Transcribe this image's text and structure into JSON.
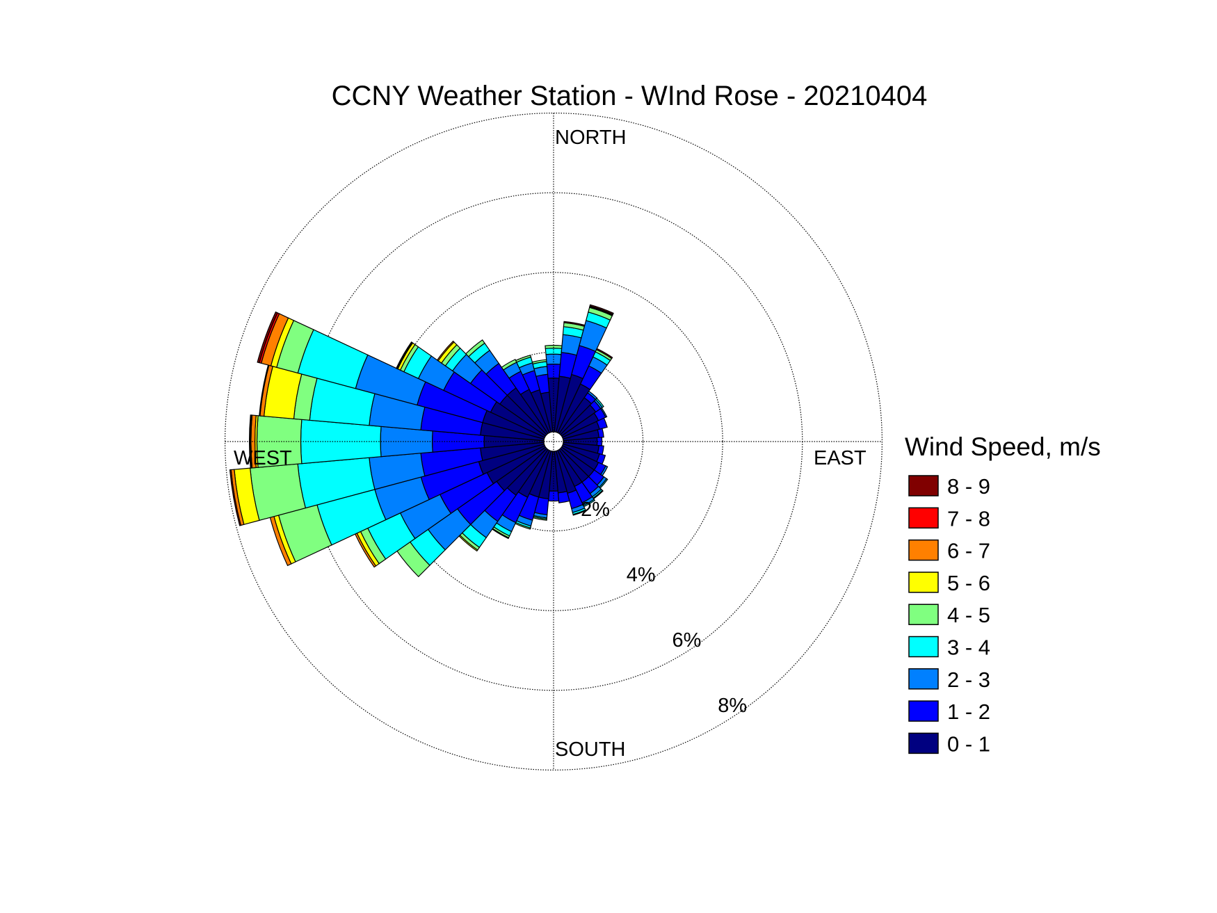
{
  "chart_data": {
    "type": "wind-rose",
    "title": "CCNY Weather Station - WInd Rose - 20210404",
    "direction_labels": {
      "north": "NORTH",
      "south": "SOUTH",
      "east": "EAST",
      "west": "WEST"
    },
    "radial_ticks": [
      "2%",
      "4%",
      "6%",
      "8%"
    ],
    "radial_tick_values": [
      2,
      4,
      6,
      8
    ],
    "radial_max": 8,
    "grid": true,
    "legend_placement": "right",
    "legend": {
      "title": "Wind Speed, m/s",
      "bins": [
        "0 - 1",
        "1 - 2",
        "2 - 3",
        "3 - 4",
        "4 - 5",
        "5 - 6",
        "6 - 7",
        "7 - 8",
        "8 - 9"
      ],
      "colors": [
        "#000080",
        "#0000ff",
        "#0080ff",
        "#00ffff",
        "#80ff80",
        "#ffff00",
        "#ff8000",
        "#ff0000",
        "#800000"
      ]
    },
    "sector_width_deg": 10,
    "sectors": [
      {
        "dir": 0,
        "values": [
          1.35,
          0.35,
          0.25,
          0.15,
          0.07,
          0.0,
          0.0,
          0.0,
          0.0
        ]
      },
      {
        "dir": 10,
        "values": [
          1.4,
          0.6,
          0.45,
          0.2,
          0.1,
          0.0,
          0.0,
          0.0,
          0.03
        ]
      },
      {
        "dir": 20,
        "values": [
          1.5,
          0.75,
          0.65,
          0.22,
          0.12,
          0.02,
          0.02,
          0.0,
          0.03
        ]
      },
      {
        "dir": 30,
        "values": [
          1.35,
          0.5,
          0.25,
          0.14,
          0.06,
          0.0,
          0.0,
          0.0,
          0.03
        ]
      },
      {
        "dir": 40,
        "values": [
          1.1,
          0.15,
          0.05,
          0.0,
          0.0,
          0.0,
          0.0,
          0.0,
          0.0
        ]
      },
      {
        "dir": 50,
        "values": [
          1.05,
          0.15,
          0.05,
          0.04,
          0.0,
          0.0,
          0.0,
          0.0,
          0.0
        ]
      },
      {
        "dir": 60,
        "values": [
          1.0,
          0.2,
          0.03,
          0.0,
          0.0,
          0.0,
          0.0,
          0.0,
          0.0
        ]
      },
      {
        "dir": 70,
        "values": [
          0.95,
          0.2,
          0.0,
          0.0,
          0.0,
          0.0,
          0.0,
          0.0,
          0.0
        ]
      },
      {
        "dir": 80,
        "values": [
          0.9,
          0.12,
          0.0,
          0.0,
          0.0,
          0.0,
          0.0,
          0.0,
          0.0
        ]
      },
      {
        "dir": 90,
        "values": [
          0.85,
          0.12,
          0.0,
          0.0,
          0.0,
          0.0,
          0.0,
          0.0,
          0.0
        ]
      },
      {
        "dir": 100,
        "values": [
          0.9,
          0.12,
          0.0,
          0.0,
          0.0,
          0.0,
          0.0,
          0.0,
          0.0
        ]
      },
      {
        "dir": 110,
        "values": [
          0.95,
          0.15,
          0.0,
          0.0,
          0.0,
          0.0,
          0.0,
          0.0,
          0.0
        ]
      },
      {
        "dir": 120,
        "values": [
          1.0,
          0.2,
          0.05,
          0.0,
          0.0,
          0.0,
          0.0,
          0.0,
          0.0
        ]
      },
      {
        "dir": 130,
        "values": [
          1.0,
          0.3,
          0.08,
          0.03,
          0.0,
          0.0,
          0.0,
          0.0,
          0.0
        ]
      },
      {
        "dir": 140,
        "values": [
          1.0,
          0.35,
          0.1,
          0.04,
          0.02,
          0.0,
          0.0,
          0.0,
          0.0
        ]
      },
      {
        "dir": 150,
        "values": [
          1.0,
          0.45,
          0.08,
          0.03,
          0.0,
          0.0,
          0.0,
          0.0,
          0.0
        ]
      },
      {
        "dir": 160,
        "values": [
          1.1,
          0.4,
          0.1,
          0.05,
          0.02,
          0.0,
          0.0,
          0.0,
          0.0
        ]
      },
      {
        "dir": 170,
        "values": [
          1.05,
          0.25,
          0.0,
          0.0,
          0.0,
          0.0,
          0.0,
          0.0,
          0.0
        ]
      },
      {
        "dir": 180,
        "values": [
          1.0,
          0.25,
          0.0,
          0.0,
          0.0,
          0.0,
          0.0,
          0.0,
          0.0
        ]
      },
      {
        "dir": 190,
        "values": [
          1.2,
          0.4,
          0.08,
          0.03,
          0.03,
          0.0,
          0.0,
          0.0,
          0.0
        ]
      },
      {
        "dir": 200,
        "values": [
          1.2,
          0.6,
          0.15,
          0.05,
          0.03,
          0.0,
          0.0,
          0.0,
          0.0
        ]
      },
      {
        "dir": 210,
        "values": [
          1.3,
          0.7,
          0.25,
          0.12,
          0.05,
          0.02,
          0.0,
          0.0,
          0.0
        ]
      },
      {
        "dir": 220,
        "values": [
          1.4,
          0.8,
          0.5,
          0.3,
          0.08,
          0.03,
          0.0,
          0.0,
          0.0
        ]
      },
      {
        "dir": 230,
        "values": [
          1.5,
          1.2,
          0.9,
          0.55,
          0.4,
          0.0,
          0.0,
          0.0,
          0.0
        ]
      },
      {
        "dir": 240,
        "values": [
          1.6,
          1.3,
          1.1,
          0.9,
          0.2,
          0.1,
          0.05,
          0.0,
          0.0
        ]
      },
      {
        "dir": 250,
        "values": [
          1.7,
          1.5,
          1.2,
          1.5,
          1.0,
          0.12,
          0.1,
          0.0,
          0.0
        ]
      },
      {
        "dir": 260,
        "values": [
          1.6,
          1.5,
          1.3,
          1.8,
          1.2,
          0.4,
          0.08,
          0.0,
          0.03
        ]
      },
      {
        "dir": 270,
        "values": [
          1.5,
          1.3,
          1.3,
          2.0,
          1.1,
          0.05,
          0.1,
          0.02,
          0.02
        ]
      },
      {
        "dir": 280,
        "values": [
          1.6,
          1.5,
          1.3,
          1.5,
          0.4,
          0.75,
          0.1,
          0.02,
          0.0
        ]
      },
      {
        "dir": 290,
        "values": [
          1.6,
          1.7,
          1.6,
          1.5,
          0.55,
          0.15,
          0.25,
          0.05,
          0.05
        ]
      },
      {
        "dir": 300,
        "values": [
          1.5,
          1.3,
          0.7,
          0.4,
          0.1,
          0.07,
          0.0,
          0.02,
          0.02
        ]
      },
      {
        "dir": 310,
        "values": [
          1.4,
          0.9,
          0.55,
          0.22,
          0.12,
          0.1,
          0.03,
          0.0,
          0.0
        ]
      },
      {
        "dir": 320,
        "values": [
          1.4,
          0.75,
          0.4,
          0.22,
          0.1,
          0.0,
          0.0,
          0.0,
          0.0
        ]
      },
      {
        "dir": 330,
        "values": [
          1.2,
          0.5,
          0.25,
          0.0,
          0.08,
          0.0,
          0.0,
          0.0,
          0.0
        ]
      },
      {
        "dir": 340,
        "values": [
          1.1,
          0.5,
          0.2,
          0.15,
          0.05,
          0.0,
          0.0,
          0.0,
          0.0
        ]
      },
      {
        "dir": 350,
        "values": [
          1.0,
          0.45,
          0.2,
          0.12,
          0.05,
          0.0,
          0.0,
          0.0,
          0.0
        ]
      }
    ]
  }
}
